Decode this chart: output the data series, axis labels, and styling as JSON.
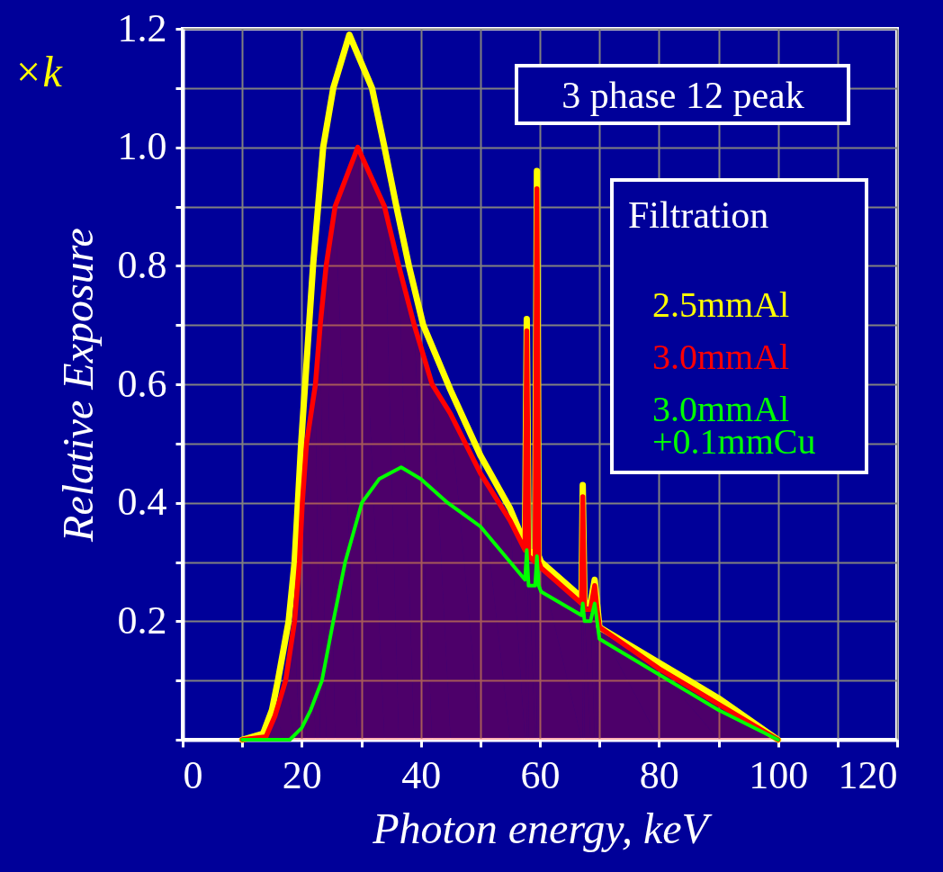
{
  "chart_data": {
    "type": "line",
    "xlabel": "Photon energy, keV",
    "ylabel": "Relative Exposure",
    "legend_title": "Filtration",
    "annotations": [
      "×k",
      "3 phase 12 peak"
    ],
    "xlim": [
      0,
      120
    ],
    "ylim": [
      0,
      1.2
    ],
    "xticks": [
      0,
      {
        "value": 10,
        "label": null
      },
      20,
      {
        "value": 30,
        "label": null
      },
      40,
      {
        "value": 50,
        "label": null
      },
      60,
      {
        "value": 70,
        "label": null
      },
      80,
      {
        "value": 90,
        "label": null
      },
      100,
      {
        "value": 110,
        "label": null
      },
      120
    ],
    "yticks": [
      {
        "value": 0,
        "label": null
      },
      {
        "value": 0.1,
        "label": null
      },
      0.2,
      {
        "value": 0.3,
        "label": null
      },
      0.4,
      {
        "value": 0.5,
        "label": null
      },
      0.6,
      {
        "value": 0.7,
        "label": null
      },
      0.8,
      {
        "value": 0.9,
        "label": null
      },
      {
        "value": 1,
        "label": "1.0"
      },
      {
        "value": 1.1,
        "label": null
      },
      1.2
    ],
    "grid": true,
    "legend": "top right",
    "marker": "none",
    "line_style": "solid",
    "series": [
      {
        "name": "2.5mmAl",
        "color": "#ffff00",
        "x": [
          10,
          13.5,
          15,
          16,
          17.8,
          18.8,
          19.9,
          21.9,
          23.6,
          25.3,
          28,
          31.8,
          33.9,
          35.9,
          38,
          40.4,
          45,
          50,
          55,
          57.5,
          57.8,
          58.1,
          59.2,
          59.5,
          59.8,
          60.2,
          67,
          67.2,
          67.5,
          68.5,
          69.2,
          69.6,
          70,
          80,
          90,
          100
        ],
        "values": [
          0,
          0.01,
          0.05,
          0.1,
          0.2,
          0.3,
          0.5,
          0.8,
          1.0,
          1.1,
          1.19,
          1.1,
          1.0,
          0.9,
          0.8,
          0.7,
          0.59,
          0.48,
          0.39,
          0.33,
          0.71,
          0.32,
          0.31,
          0.96,
          0.31,
          0.3,
          0.24,
          0.43,
          0.23,
          0.23,
          0.27,
          0.23,
          0.19,
          0.13,
          0.07,
          0
        ]
      },
      {
        "name": "3.0mmAl",
        "color": "#ff0000",
        "type": "area",
        "x": [
          10,
          14,
          15.5,
          17.3,
          18.8,
          19.6,
          20.1,
          20.8,
          22.3,
          23.1,
          24.1,
          25.6,
          29.4,
          33.9,
          36.3,
          38.9,
          41.9,
          45,
          50,
          55,
          57.5,
          57.8,
          58.1,
          59.2,
          59.5,
          59.8,
          60.2,
          67,
          67.2,
          67.5,
          68.5,
          69.2,
          69.6,
          70,
          80,
          90,
          100
        ],
        "values": [
          0,
          0.005,
          0.04,
          0.1,
          0.2,
          0.3,
          0.4,
          0.5,
          0.6,
          0.7,
          0.8,
          0.9,
          1.0,
          0.9,
          0.8,
          0.7,
          0.6,
          0.55,
          0.45,
          0.37,
          0.32,
          0.69,
          0.31,
          0.3,
          0.93,
          0.3,
          0.29,
          0.23,
          0.41,
          0.22,
          0.22,
          0.26,
          0.22,
          0.19,
          0.12,
          0.06,
          0
        ]
      },
      {
        "name": "3.0mmAl\n+0.1mmCu",
        "color": "#00ff00",
        "x": [
          10,
          18,
          20,
          21.5,
          23.4,
          25.3,
          27.3,
          30.1,
          33,
          36.7,
          40,
          44.5,
          50,
          55,
          57.5,
          57.8,
          58.1,
          59.2,
          59.5,
          59.8,
          60.2,
          67,
          67.2,
          67.5,
          68.5,
          69.2,
          69.6,
          70,
          80,
          90,
          100
        ],
        "values": [
          0,
          0,
          0.02,
          0.05,
          0.1,
          0.2,
          0.3,
          0.4,
          0.44,
          0.46,
          0.44,
          0.4,
          0.36,
          0.3,
          0.27,
          0.32,
          0.26,
          0.26,
          0.31,
          0.26,
          0.25,
          0.21,
          0.23,
          0.2,
          0.2,
          0.23,
          0.2,
          0.17,
          0.11,
          0.05,
          0
        ]
      }
    ]
  }
}
